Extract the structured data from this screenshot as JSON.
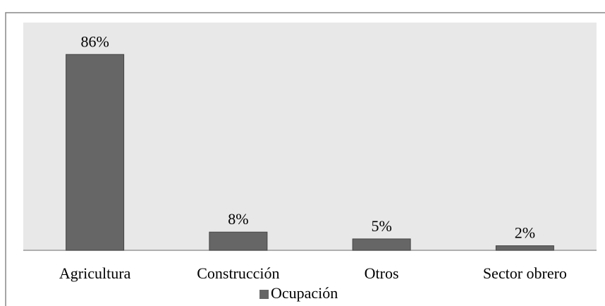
{
  "chart_data": {
    "type": "bar",
    "categories": [
      "Agricultura",
      "Construcción",
      "Otros",
      "Sector obrero"
    ],
    "series": [
      {
        "name": "Ocupación",
        "color": "#666666",
        "values": [
          86,
          8,
          5,
          2
        ],
        "value_labels": [
          "86%",
          "8%",
          "5%",
          "2%"
        ]
      }
    ],
    "ylim": [
      0,
      100
    ],
    "legend": "bottom"
  }
}
